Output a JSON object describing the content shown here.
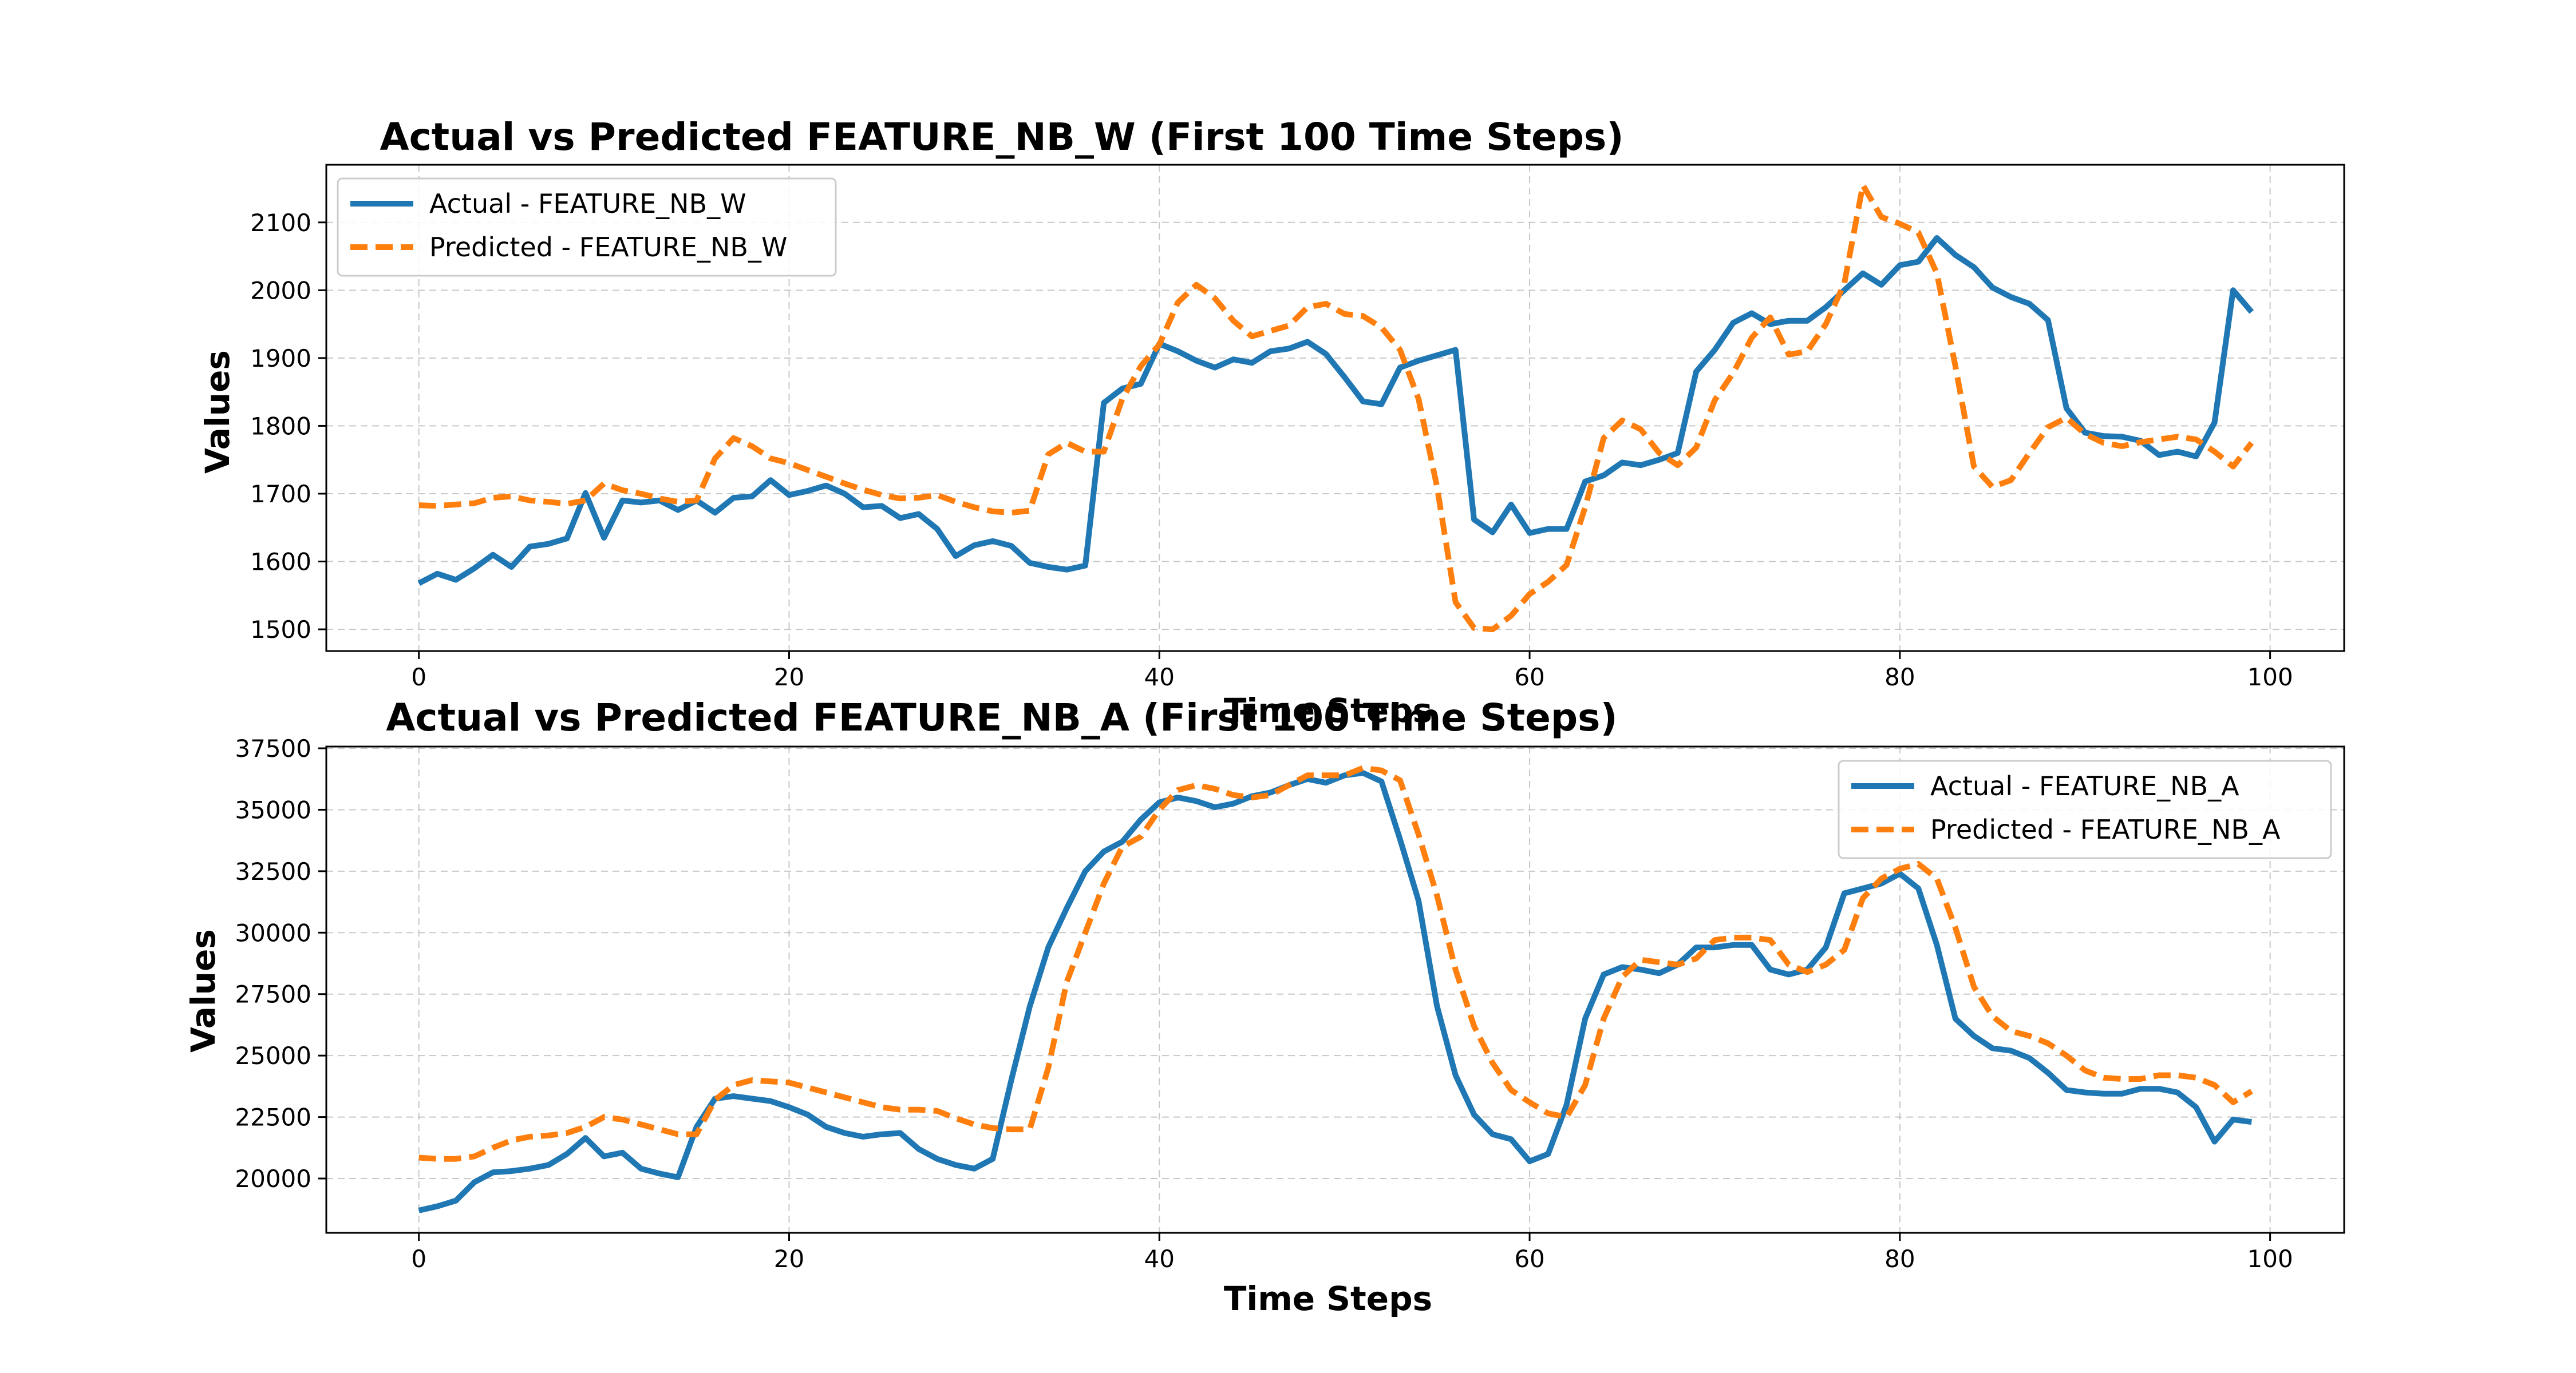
{
  "chart_data": [
    {
      "type": "line",
      "title": "Actual vs Predicted FEATURE_NB_W (First 100 Time Steps)",
      "xlabel": "Time Steps",
      "ylabel": "Values",
      "xlim": [
        -5,
        104
      ],
      "ylim": [
        1468,
        2185
      ],
      "xticks": [
        0,
        20,
        40,
        60,
        80,
        100
      ],
      "yticks": [
        1500,
        1600,
        1700,
        1800,
        1900,
        2000,
        2100
      ],
      "grid": true,
      "legend_position": "upper-left",
      "series": [
        {
          "name": "Actual - FEATURE_NB_W",
          "color": "#1f77b4",
          "style": "solid",
          "x": [
            0,
            1,
            2,
            3,
            4,
            5,
            6,
            7,
            8,
            9,
            10,
            11,
            12,
            13,
            14,
            15,
            16,
            17,
            18,
            19,
            20,
            21,
            22,
            23,
            24,
            25,
            26,
            27,
            28,
            29,
            30,
            31,
            32,
            33,
            34,
            35,
            36,
            37,
            38,
            39,
            40,
            41,
            42,
            43,
            44,
            45,
            46,
            47,
            48,
            49,
            50,
            51,
            52,
            53,
            54,
            55,
            56,
            57,
            58,
            59,
            60,
            61,
            62,
            63,
            64,
            65,
            66,
            67,
            68,
            69,
            70,
            71,
            72,
            73,
            74,
            75,
            76,
            77,
            78,
            79,
            80,
            81,
            82,
            83,
            84,
            85,
            86,
            87,
            88,
            89,
            90,
            91,
            92,
            93,
            94,
            95,
            96,
            97,
            98,
            99
          ],
          "values": [
            1568,
            1582,
            1573,
            1590,
            1610,
            1592,
            1622,
            1626,
            1634,
            1701,
            1635,
            1690,
            1687,
            1690,
            1676,
            1690,
            1672,
            1694,
            1696,
            1720,
            1698,
            1704,
            1712,
            1700,
            1680,
            1682,
            1664,
            1670,
            1648,
            1608,
            1624,
            1630,
            1623,
            1598,
            1592,
            1588,
            1594,
            1834,
            1855,
            1862,
            1921,
            1910,
            1896,
            1886,
            1898,
            1893,
            1910,
            1914,
            1924,
            1906,
            1872,
            1836,
            1832,
            1886,
            1896,
            1904,
            1912,
            1662,
            1643,
            1684,
            1642,
            1648,
            1648,
            1718,
            1727,
            1746,
            1742,
            1750,
            1760,
            1880,
            1912,
            1952,
            1966,
            1950,
            1955,
            1955,
            1975,
            2000,
            2025,
            2008,
            2037,
            2042,
            2077,
            2052,
            2034,
            2004,
            1990,
            1980,
            1956,
            1826,
            1790,
            1785,
            1784,
            1778,
            1757,
            1762,
            1755,
            1805,
            2000,
            1968
          ]
        },
        {
          "name": "Predicted - FEATURE_NB_W",
          "color": "#ff7f0e",
          "style": "dashed",
          "x": [
            0,
            1,
            2,
            3,
            4,
            5,
            6,
            7,
            8,
            9,
            10,
            11,
            12,
            13,
            14,
            15,
            16,
            17,
            18,
            19,
            20,
            21,
            22,
            23,
            24,
            25,
            26,
            27,
            28,
            29,
            30,
            31,
            32,
            33,
            34,
            35,
            36,
            37,
            38,
            39,
            40,
            41,
            42,
            43,
            44,
            45,
            46,
            47,
            48,
            49,
            50,
            51,
            52,
            53,
            54,
            55,
            56,
            57,
            58,
            59,
            60,
            61,
            62,
            63,
            64,
            65,
            66,
            67,
            68,
            69,
            70,
            71,
            72,
            73,
            74,
            75,
            76,
            77,
            78,
            79,
            80,
            81,
            82,
            83,
            84,
            85,
            86,
            87,
            88,
            89,
            90,
            91,
            92,
            93,
            94,
            95,
            96,
            97,
            98,
            99
          ],
          "values": [
            1683,
            1682,
            1684,
            1686,
            1694,
            1696,
            1690,
            1688,
            1685,
            1690,
            1715,
            1705,
            1700,
            1693,
            1688,
            1690,
            1752,
            1782,
            1770,
            1752,
            1745,
            1735,
            1725,
            1715,
            1706,
            1698,
            1693,
            1694,
            1698,
            1688,
            1680,
            1674,
            1672,
            1675,
            1758,
            1775,
            1762,
            1762,
            1840,
            1888,
            1920,
            1982,
            2008,
            1988,
            1955,
            1932,
            1940,
            1948,
            1975,
            1980,
            1965,
            1962,
            1945,
            1912,
            1840,
            1710,
            1540,
            1502,
            1500,
            1520,
            1552,
            1570,
            1595,
            1680,
            1782,
            1808,
            1795,
            1760,
            1742,
            1768,
            1838,
            1878,
            1930,
            1960,
            1905,
            1910,
            1950,
            2010,
            2155,
            2108,
            2098,
            2085,
            2025,
            1888,
            1740,
            1710,
            1720,
            1760,
            1798,
            1812,
            1788,
            1775,
            1770,
            1776,
            1780,
            1784,
            1780,
            1762,
            1740,
            1775
          ]
        }
      ]
    },
    {
      "type": "line",
      "title": "Actual vs Predicted FEATURE_NB_A (First 100 Time Steps)",
      "xlabel": "Time Steps",
      "ylabel": "Values",
      "xlim": [
        -5,
        104
      ],
      "ylim": [
        17790,
        37570
      ],
      "xticks": [
        0,
        20,
        40,
        60,
        80,
        100
      ],
      "yticks": [
        20000,
        22500,
        25000,
        27500,
        30000,
        32500,
        35000,
        37500
      ],
      "grid": true,
      "legend_position": "upper-right",
      "series": [
        {
          "name": "Actual - FEATURE_NB_A",
          "color": "#1f77b4",
          "style": "solid",
          "x": [
            0,
            1,
            2,
            3,
            4,
            5,
            6,
            7,
            8,
            9,
            10,
            11,
            12,
            13,
            14,
            15,
            16,
            17,
            18,
            19,
            20,
            21,
            22,
            23,
            24,
            25,
            26,
            27,
            28,
            29,
            30,
            31,
            32,
            33,
            34,
            35,
            36,
            37,
            38,
            39,
            40,
            41,
            42,
            43,
            44,
            45,
            46,
            47,
            48,
            49,
            50,
            51,
            52,
            53,
            54,
            55,
            56,
            57,
            58,
            59,
            60,
            61,
            62,
            63,
            64,
            65,
            66,
            67,
            68,
            69,
            70,
            71,
            72,
            73,
            74,
            75,
            76,
            77,
            78,
            79,
            80,
            81,
            82,
            83,
            84,
            85,
            86,
            87,
            88,
            89,
            90,
            91,
            92,
            93,
            94,
            95,
            96,
            97,
            98,
            99
          ],
          "values": [
            18700,
            18870,
            19100,
            19850,
            20250,
            20300,
            20400,
            20550,
            21000,
            21650,
            20900,
            21050,
            20400,
            20200,
            20050,
            22100,
            23250,
            23350,
            23250,
            23150,
            22900,
            22600,
            22100,
            21850,
            21700,
            21800,
            21850,
            21200,
            20800,
            20550,
            20400,
            20800,
            24000,
            27000,
            29400,
            31000,
            32500,
            33300,
            33700,
            34600,
            35300,
            35500,
            35350,
            35100,
            35250,
            35550,
            35700,
            36000,
            36250,
            36100,
            36400,
            36500,
            36150,
            33800,
            31300,
            27000,
            24200,
            22600,
            21800,
            21600,
            20700,
            21000,
            23000,
            26500,
            28300,
            28600,
            28500,
            28350,
            28700,
            29400,
            29400,
            29500,
            29500,
            28500,
            28300,
            28500,
            29400,
            31600,
            31800,
            32000,
            32400,
            31800,
            29500,
            26500,
            25800,
            25300,
            25200,
            24900,
            24300,
            23600,
            23500,
            23450,
            23450,
            23650,
            23650,
            23500,
            22900,
            21500,
            22400,
            22300
          ]
        },
        {
          "name": "Predicted - FEATURE_NB_A",
          "color": "#ff7f0e",
          "style": "dashed",
          "x": [
            0,
            1,
            2,
            3,
            4,
            5,
            6,
            7,
            8,
            9,
            10,
            11,
            12,
            13,
            14,
            15,
            16,
            17,
            18,
            19,
            20,
            21,
            22,
            23,
            24,
            25,
            26,
            27,
            28,
            29,
            30,
            31,
            32,
            33,
            34,
            35,
            36,
            37,
            38,
            39,
            40,
            41,
            42,
            43,
            44,
            45,
            46,
            47,
            48,
            49,
            50,
            51,
            52,
            53,
            54,
            55,
            56,
            57,
            58,
            59,
            60,
            61,
            62,
            63,
            64,
            65,
            66,
            67,
            68,
            69,
            70,
            71,
            72,
            73,
            74,
            75,
            76,
            77,
            78,
            79,
            80,
            81,
            82,
            83,
            84,
            85,
            86,
            87,
            88,
            89,
            90,
            91,
            92,
            93,
            94,
            95,
            96,
            97,
            98,
            99
          ],
          "values": [
            20850,
            20800,
            20800,
            20900,
            21250,
            21550,
            21700,
            21750,
            21850,
            22100,
            22500,
            22400,
            22200,
            22000,
            21800,
            21800,
            23200,
            23800,
            24000,
            23950,
            23900,
            23700,
            23500,
            23300,
            23100,
            22900,
            22800,
            22800,
            22750,
            22450,
            22200,
            22050,
            22000,
            22000,
            24500,
            28000,
            30000,
            32000,
            33500,
            33900,
            35000,
            35800,
            36000,
            35850,
            35600,
            35500,
            35600,
            36000,
            36400,
            36400,
            36400,
            36700,
            36600,
            36200,
            34000,
            31500,
            28500,
            26200,
            24700,
            23600,
            23100,
            22650,
            22500,
            23800,
            26500,
            28200,
            28900,
            28800,
            28700,
            28950,
            29700,
            29800,
            29800,
            29700,
            28700,
            28400,
            28700,
            29300,
            31400,
            32200,
            32600,
            32800,
            32200,
            30200,
            27800,
            26600,
            26000,
            25800,
            25500,
            25000,
            24400,
            24100,
            24050,
            24050,
            24200,
            24200,
            24100,
            23800,
            23100,
            23550
          ]
        }
      ]
    }
  ]
}
